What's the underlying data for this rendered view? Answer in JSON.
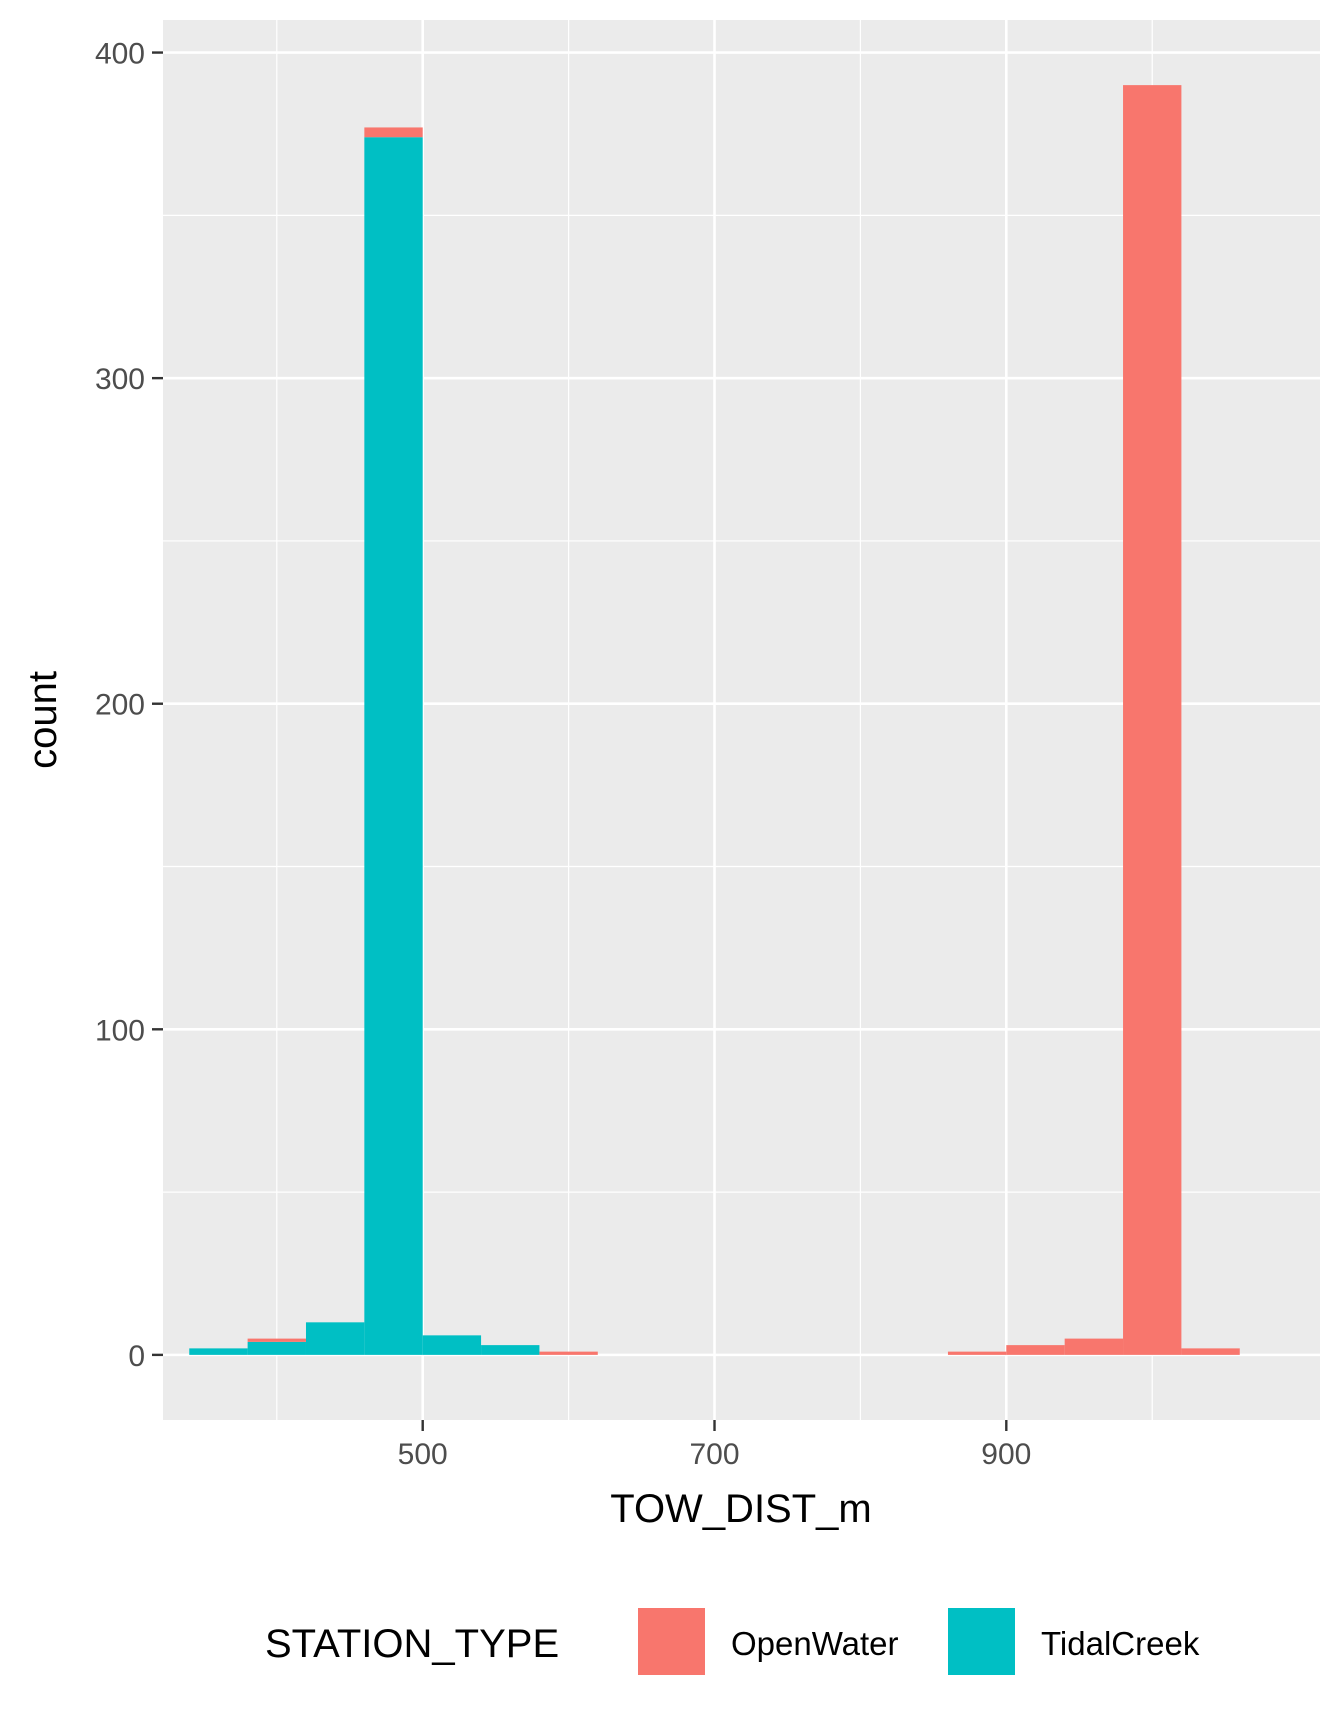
{
  "chart_data": {
    "type": "bar",
    "subtype": "stacked-histogram",
    "xlabel": "TOW_DIST_m",
    "ylabel": "count",
    "x_ticks": [
      500,
      700,
      900
    ],
    "y_ticks": [
      0,
      100,
      200,
      300,
      400
    ],
    "xlim": [
      322,
      1115
    ],
    "ylim": [
      -20,
      410
    ],
    "bin_width": 40,
    "bins": [
      {
        "x_start": 340,
        "x_end": 380,
        "OpenWater": 0,
        "TidalCreek": 2
      },
      {
        "x_start": 380,
        "x_end": 420,
        "OpenWater": 1,
        "TidalCreek": 4
      },
      {
        "x_start": 420,
        "x_end": 460,
        "OpenWater": 0,
        "TidalCreek": 10
      },
      {
        "x_start": 460,
        "x_end": 500,
        "OpenWater": 3,
        "TidalCreek": 374
      },
      {
        "x_start": 500,
        "x_end": 540,
        "OpenWater": 0,
        "TidalCreek": 6
      },
      {
        "x_start": 540,
        "x_end": 580,
        "OpenWater": 0,
        "TidalCreek": 3
      },
      {
        "x_start": 580,
        "x_end": 620,
        "OpenWater": 1,
        "TidalCreek": 0
      },
      {
        "x_start": 860,
        "x_end": 900,
        "OpenWater": 1,
        "TidalCreek": 0
      },
      {
        "x_start": 900,
        "x_end": 940,
        "OpenWater": 3,
        "TidalCreek": 0
      },
      {
        "x_start": 940,
        "x_end": 980,
        "OpenWater": 5,
        "TidalCreek": 0
      },
      {
        "x_start": 980,
        "x_end": 1020,
        "OpenWater": 390,
        "TidalCreek": 0
      },
      {
        "x_start": 1020,
        "x_end": 1060,
        "OpenWater": 2,
        "TidalCreek": 0
      }
    ],
    "series": [
      {
        "name": "OpenWater",
        "color": "#F8766D"
      },
      {
        "name": "TidalCreek",
        "color": "#00BFC4"
      }
    ],
    "stack_order": [
      "TidalCreek",
      "OpenWater"
    ],
    "legend": {
      "title": "STATION_TYPE",
      "placement": "bottom"
    },
    "grid": true,
    "panel_background": "#EBEBEB",
    "grid_color": "#FFFFFF"
  }
}
